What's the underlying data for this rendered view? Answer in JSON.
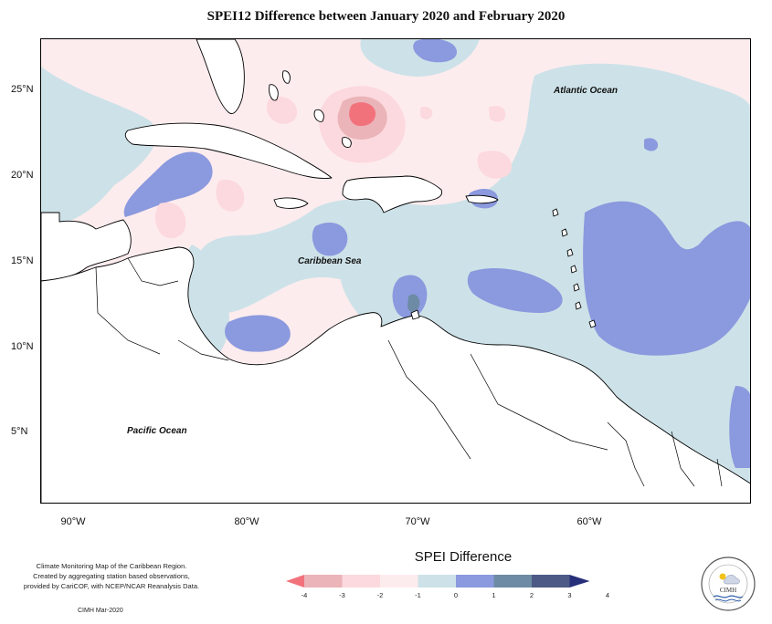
{
  "title": "SPEI12 Difference between January 2020 and February 2020",
  "map": {
    "lat_labels": [
      "25°N",
      "20°N",
      "15°N",
      "10°N",
      "5°N"
    ],
    "lon_labels": [
      "90°W",
      "80°W",
      "70°W",
      "60°W"
    ],
    "places": {
      "atlantic": "Atlantic Ocean",
      "caribbean": "Caribbean Sea",
      "pacific": "Pacific Ocean"
    }
  },
  "footnote": {
    "line1": "Climate Monitoring Map of the Caribbean Region.",
    "line2": "Created by aggregating station based observations,",
    "line3": "provided by CariCOF, with NCEP/NCAR Reanalysis Data.",
    "credit": "CIMH Mar-2020"
  },
  "legend": {
    "title": "SPEI Difference",
    "ticks": [
      "-4",
      "-3",
      "-2",
      "-1",
      "0",
      "1",
      "2",
      "3",
      "4"
    ],
    "colors": [
      "#f2727c",
      "#eab4b9",
      "#fcd9de",
      "#fdecee",
      "#cde2e8",
      "#8b99de",
      "#6d8ba4",
      "#4e5a86",
      "#272f7a"
    ]
  },
  "logo": {
    "text": "CIMH",
    "ring_text": "Caribbean Institute for Meteorology and Hydrology"
  }
}
